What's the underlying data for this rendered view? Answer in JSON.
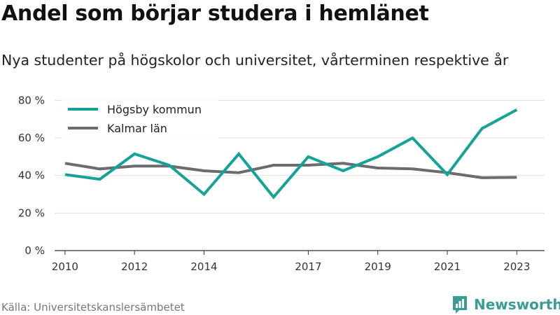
{
  "title": "Andel som börjar studera i hemlänet",
  "subtitle": "Nya studenter på högskolor och universitet, vårterminen respektive år",
  "source": "Källa: Universitetskanslersämbetet",
  "brand": {
    "name": "Newsworthy",
    "icon": "newsworthy-logo-icon",
    "color": "#3a9d95"
  },
  "chart_data": {
    "type": "line",
    "title": "",
    "xlabel": "",
    "ylabel": "",
    "x": [
      2010,
      2011,
      2012,
      2013,
      2014,
      2015,
      2016,
      2017,
      2018,
      2019,
      2020,
      2021,
      2022,
      2023
    ],
    "x_ticks": [
      "2010",
      "2012",
      "2014",
      "2017",
      "2019",
      "2021",
      "2023"
    ],
    "y_ticks": [
      "0 %",
      "20 %",
      "40 %",
      "60 %",
      "80 %"
    ],
    "ylim": [
      0,
      85
    ],
    "grid": true,
    "legend": "top-left",
    "series": [
      {
        "name": "Högsby kommun",
        "color": "#16a397",
        "values": [
          40.5,
          38,
          51.5,
          45.5,
          30,
          51.5,
          28.5,
          50,
          42.5,
          50,
          60,
          40.5,
          65,
          75
        ]
      },
      {
        "name": "Kalmar län",
        "color": "#6b6b70",
        "values": [
          46.5,
          43.5,
          45,
          45,
          42.5,
          41.5,
          45.5,
          45.5,
          46.5,
          44,
          43.5,
          41.5,
          38.8,
          39
        ]
      }
    ]
  }
}
